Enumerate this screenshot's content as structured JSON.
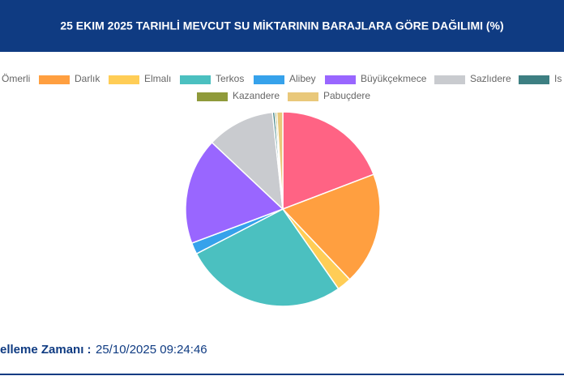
{
  "chart_data": {
    "type": "pie",
    "title": "25 EKIM 2025 TARIHLİ MEVCUT SU MİKTARININ BARAJLARA GÖRE DAĞILIMI (%)",
    "categories": [
      "Ömerli",
      "Darlık",
      "Elmalı",
      "Terkos",
      "Alibey",
      "Büyükçekmece",
      "Sazlıdere",
      "Is",
      "Kazandere",
      "Pabuçdere"
    ],
    "values": [
      19.2,
      18.7,
      2.4,
      27.1,
      1.9,
      17.7,
      11.3,
      0.4,
      0.3,
      1.0
    ],
    "colors": [
      "#ff6384",
      "#ff9f40",
      "#ffcd56",
      "#4bc0c0",
      "#36a2eb",
      "#9966ff",
      "#c9cbcf",
      "#3d7f82",
      "#8f9a3a",
      "#e9c87a"
    ],
    "footer_label": "elleme Zamanı :",
    "footer_value": "25/10/2025 09:24:46"
  }
}
